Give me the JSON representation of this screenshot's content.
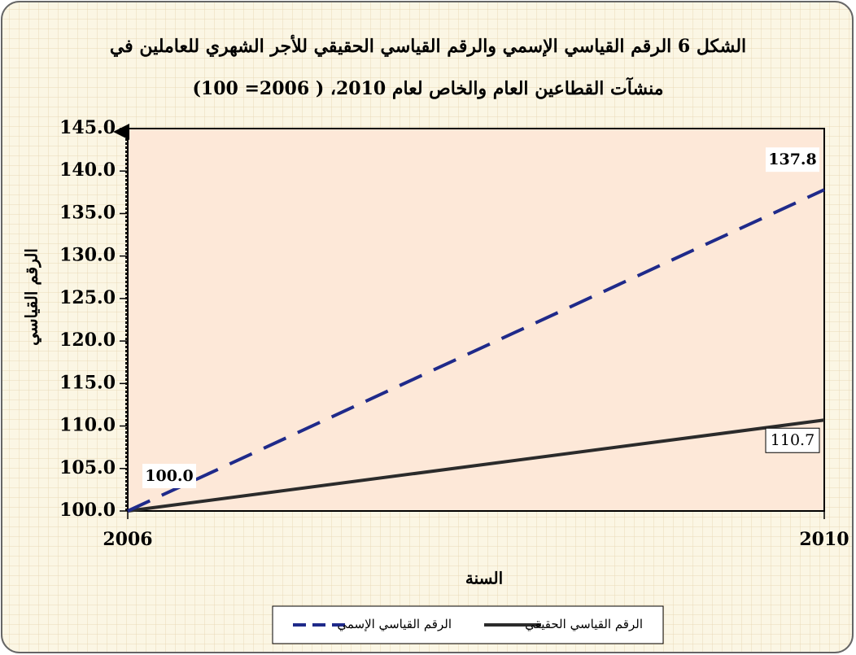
{
  "chart_data": {
    "type": "line",
    "title": [
      "الشكل 6 الرقم القياسي الإسمي والرقم القياسي الحقيقي للأجر الشهري للعاملين في",
      "منشآت القطاعين العام والخاص لعام 2010، ( 2006= 100)"
    ],
    "x_label": "السنة",
    "y_label": "الرقم القياسي",
    "x": [
      2006,
      2010
    ],
    "xlim": [
      2006,
      2010
    ],
    "xticks": [
      2006,
      2010
    ],
    "ylim": [
      100,
      145
    ],
    "yticks": [
      {
        "value": 100,
        "label": "100.0"
      },
      {
        "value": 105,
        "label": "105.0"
      },
      {
        "value": 110,
        "label": "110.0"
      },
      {
        "value": 115,
        "label": "115.0"
      },
      {
        "value": 120,
        "label": "120.0"
      },
      {
        "value": 125,
        "label": "125.0"
      },
      {
        "value": 130,
        "label": "130.0"
      },
      {
        "value": 135,
        "label": "135.0"
      },
      {
        "value": 140,
        "label": "140.0"
      },
      {
        "value": 145,
        "label": "145.0"
      }
    ],
    "grid": false,
    "series": [
      {
        "name": "الرقم القياسي الإسمي",
        "color": "#1f2a8a",
        "dash": true,
        "values": [
          100,
          137.8
        ],
        "value_labels": [
          "100.0",
          "137.8"
        ]
      },
      {
        "name": "الرقم القياسي الحقيقي",
        "color": "#2b2b2b",
        "dash": false,
        "values": [
          100,
          110.7
        ],
        "value_labels": [
          null,
          "110.7"
        ]
      }
    ]
  }
}
